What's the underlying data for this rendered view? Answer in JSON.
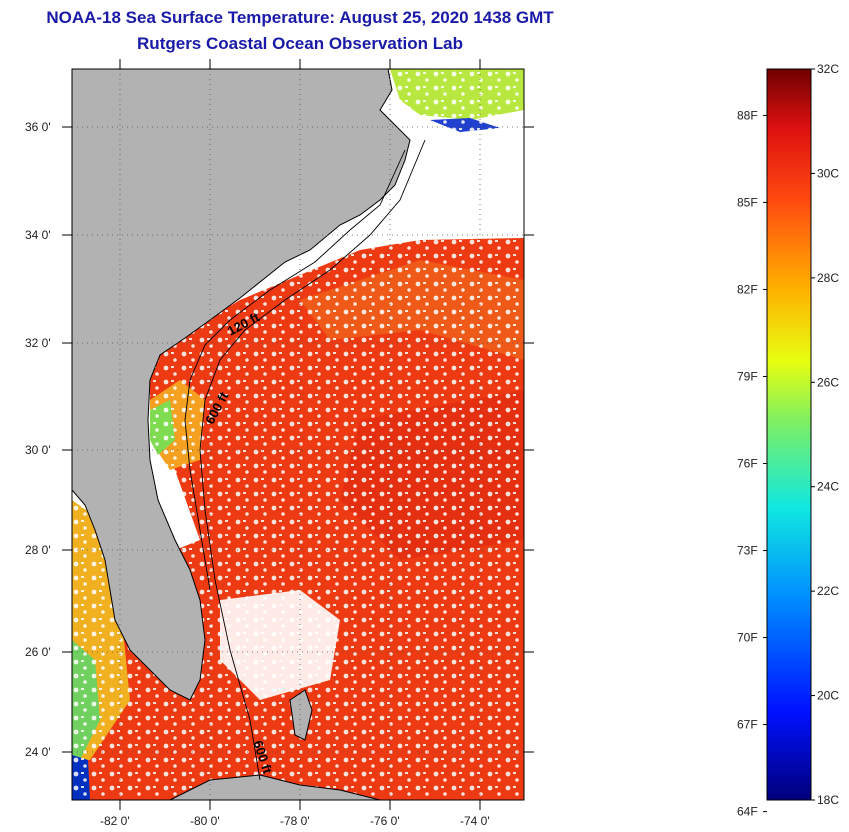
{
  "title": "NOAA-18 Sea Surface Temperature:  August 25, 2020 1438 GMT",
  "subtitle": "Rutgers Coastal Ocean Observation Lab",
  "map": {
    "lat_labels": [
      "36 0'",
      "34 0'",
      "32 0'",
      "30 0'",
      "28 0'",
      "26 0'",
      "24 0'"
    ],
    "lon_labels": [
      "-82 0'",
      "-80 0'",
      "-78 0'",
      "-76 0'",
      "-74 0'"
    ],
    "contour_labels": [
      "120 ft",
      "600 ft",
      "600 ft"
    ],
    "colors": {
      "land": "#b2b2b2",
      "cloud": "#ffffff",
      "warm_ocean": "#ee3a12",
      "coast": "#000000"
    }
  },
  "colorbar": {
    "celsius_labels": [
      "32C",
      "30C",
      "28C",
      "26C",
      "24C",
      "22C",
      "20C",
      "18C"
    ],
    "fahrenheit_labels": [
      "88F",
      "85F",
      "82F",
      "79F",
      "76F",
      "73F",
      "70F",
      "67F",
      "64F"
    ],
    "range_c": [
      18,
      32
    ]
  }
}
